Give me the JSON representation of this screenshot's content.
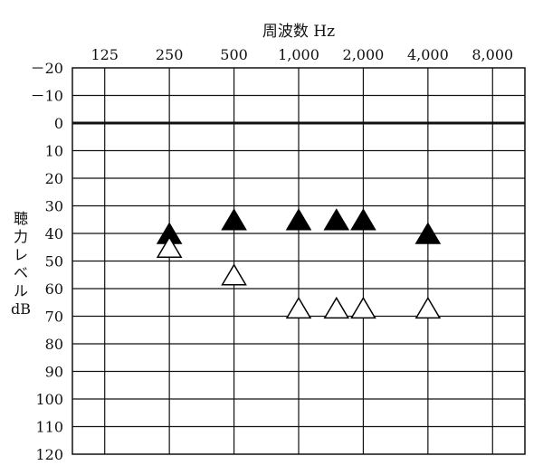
{
  "chart_data": {
    "type": "scatter",
    "title": "",
    "xlabel": "周波数 Hz",
    "ylabel": "聴力レベル dB",
    "ylabel_lines": [
      "聴",
      "力",
      "レ",
      "ベ",
      "ル",
      "dB"
    ],
    "x_categories": [
      "125",
      "250",
      "500",
      "1,000",
      "2,000",
      "4,000",
      "8,000"
    ],
    "x_tick_labels": [
      "125",
      "250",
      "500",
      "1,000",
      "2,000",
      "4,000",
      "8,000"
    ],
    "y_tick_labels": [
      "－20",
      "－10",
      "0",
      "10",
      "20",
      "30",
      "40",
      "50",
      "60",
      "70",
      "80",
      "90",
      "100",
      "110",
      "120"
    ],
    "ylim": [
      -20,
      120
    ],
    "y_inverted": true,
    "grid": true,
    "reference_line_y": 0,
    "series": [
      {
        "marker": "filled-triangle",
        "color": "#000000",
        "points": [
          {
            "x": 250,
            "y": 40
          },
          {
            "x": 500,
            "y": 35
          },
          {
            "x": 1000,
            "y": 35
          },
          {
            "x": 1500,
            "y": 35
          },
          {
            "x": 2000,
            "y": 35
          },
          {
            "x": 4000,
            "y": 40
          }
        ]
      },
      {
        "marker": "open-triangle",
        "color": "#000000",
        "points": [
          {
            "x": 250,
            "y": 45
          },
          {
            "x": 500,
            "y": 55
          },
          {
            "x": 1000,
            "y": 67
          },
          {
            "x": 1500,
            "y": 67
          },
          {
            "x": 2000,
            "y": 67
          },
          {
            "x": 4000,
            "y": 67
          }
        ]
      }
    ]
  }
}
